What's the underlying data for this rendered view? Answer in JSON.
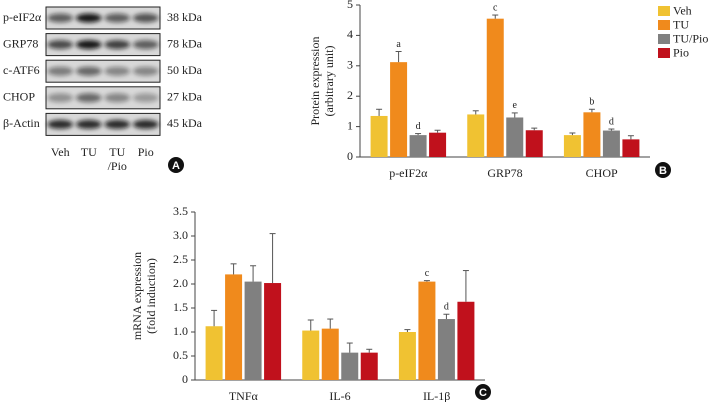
{
  "blot": {
    "rows": [
      {
        "label": "p-eIF2α",
        "size": "38 kDa"
      },
      {
        "label": "GRP78",
        "size": "78 kDa"
      },
      {
        "label": "c-ATF6",
        "size": "50 kDa"
      },
      {
        "label": "CHOP",
        "size": "27 kDa"
      },
      {
        "label": "β-Actin",
        "size": "45 kDa"
      }
    ],
    "lanes": [
      [
        "Veh"
      ],
      [
        "TU"
      ],
      [
        "TU",
        "/Pio"
      ],
      [
        "Pio"
      ]
    ]
  },
  "panel_labels": [
    "A",
    "B",
    "C"
  ],
  "chart_data": [
    {
      "type": "bar",
      "ylabel": [
        "Protein expression",
        "(arbitrary unit)"
      ],
      "categories": [
        "p-eIF2α",
        "GRP78",
        "CHOP"
      ],
      "ylim": [
        0,
        5
      ],
      "yticks": [
        0,
        1,
        2,
        3,
        4,
        5
      ],
      "legend": "top-right",
      "series": [
        {
          "name": "Veh",
          "color": "#f0c232",
          "values": [
            1.35,
            1.4,
            0.72
          ],
          "errors": [
            0.22,
            0.12,
            0.07
          ],
          "annotations": [
            null,
            null,
            null
          ]
        },
        {
          "name": "TU",
          "color": "#f08a1c",
          "values": [
            3.12,
            4.55,
            1.47
          ],
          "errors": [
            0.35,
            0.12,
            0.1
          ],
          "annotations": [
            "a",
            "c",
            "b"
          ]
        },
        {
          "name": "TU/Pio",
          "color": "#808080",
          "values": [
            0.72,
            1.3,
            0.87
          ],
          "errors": [
            0.05,
            0.15,
            0.05
          ],
          "annotations": [
            "d",
            "e",
            "d"
          ]
        },
        {
          "name": "Pio",
          "color": "#c0111c",
          "values": [
            0.8,
            0.88,
            0.58
          ],
          "errors": [
            0.08,
            0.07,
            0.12
          ],
          "annotations": [
            null,
            null,
            null
          ]
        }
      ]
    },
    {
      "type": "bar",
      "ylabel": [
        "mRNA expression",
        "(fold induction)"
      ],
      "categories": [
        "TNFα",
        "IL-6",
        "IL-1β"
      ],
      "ylim": [
        0,
        3.5
      ],
      "yticks": [
        0,
        0.5,
        {
          "value": 1,
          "label": "1.0"
        },
        1.5,
        {
          "value": 2,
          "label": "2.0"
        },
        2.5,
        {
          "value": 3,
          "label": "3.0"
        },
        3.5
      ],
      "series": [
        {
          "color": "#f0c232",
          "values": [
            1.12,
            1.03,
            1.0
          ],
          "errors": [
            0.33,
            0.22,
            0.05
          ],
          "annotations": [
            null,
            null,
            null
          ]
        },
        {
          "color": "#f08a1c",
          "values": [
            2.2,
            1.07,
            2.05
          ],
          "errors": [
            0.22,
            0.2,
            0.02
          ],
          "annotations": [
            null,
            null,
            "c"
          ]
        },
        {
          "color": "#808080",
          "values": [
            2.05,
            0.57,
            1.27
          ],
          "errors": [
            0.33,
            0.2,
            0.1
          ],
          "annotations": [
            null,
            null,
            "d"
          ]
        },
        {
          "color": "#c0111c",
          "values": [
            2.02,
            0.57,
            1.63
          ],
          "errors": [
            1.03,
            0.07,
            0.65
          ],
          "annotations": [
            null,
            null,
            null
          ]
        }
      ]
    }
  ]
}
